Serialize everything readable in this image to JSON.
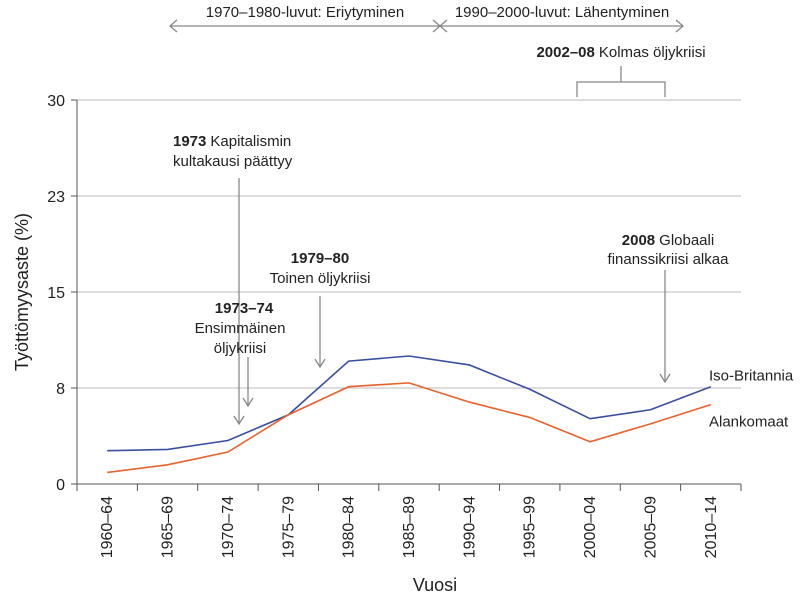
{
  "chart_data": {
    "type": "line",
    "title": "",
    "xlabel": "Vuosi",
    "ylabel": "Työttömyysaste (%)",
    "ylim": [
      0,
      30
    ],
    "yticks": [
      "0",
      "8",
      "15",
      "23",
      "30"
    ],
    "ytick_values": [
      0,
      7.5,
      15,
      22.5,
      30
    ],
    "categories": [
      "1960–64",
      "1965–69",
      "1970–74",
      "1975–79",
      "1980–84",
      "1985–89",
      "1990–94",
      "1995–99",
      "2000–04",
      "2005–09",
      "2010–14"
    ],
    "series": [
      {
        "name": "Iso-Britannia",
        "color": "#3a4fa0",
        "values": [
          2.6,
          2.7,
          3.4,
          5.4,
          9.6,
          10.0,
          9.3,
          7.4,
          5.1,
          5.8,
          7.6
        ]
      },
      {
        "name": "Alankomaat",
        "color": "#e8622c",
        "values": [
          0.9,
          1.5,
          2.5,
          5.4,
          7.6,
          7.9,
          6.4,
          5.2,
          3.3,
          4.7,
          6.2
        ]
      }
    ],
    "grid": true
  },
  "annotations": {
    "period1": "1970–1980-luvut: Eriytyminen",
    "period2": "1990–2000-luvut: Lähentyminen",
    "crisis3_year": "2002–08",
    "crisis3_text": "Kolmas öljykriisi",
    "golden_year": "1973",
    "golden_text1": "Kapitalismin",
    "golden_text2": "kultakausi päättyy",
    "oil1_year": "1973–74",
    "oil1_text1": "Ensimmäinen",
    "oil1_text2": "öljykriisi",
    "oil2_year": "1979–80",
    "oil2_text": "Toinen öljykriisi",
    "fin_year": "2008",
    "fin_text1": "Globaali",
    "fin_text2": "finanssikriisi alkaa"
  }
}
